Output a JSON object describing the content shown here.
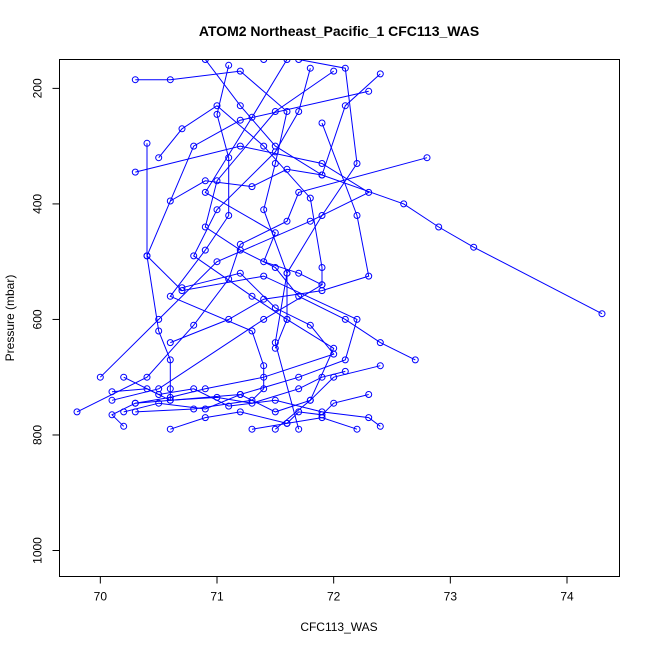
{
  "chart_data": {
    "type": "line",
    "title": "ATOM2 Northeast_Pacific_1 CFC113_WAS",
    "xlabel": "CFC113_WAS",
    "ylabel": "Pressure (mbar)",
    "xlim": [
      69.65,
      74.45
    ],
    "ylim": [
      150,
      1045
    ],
    "y_reversed": true,
    "x_ticks": [
      70,
      71,
      72,
      73,
      74
    ],
    "y_ticks": [
      200,
      400,
      600,
      800,
      1000
    ],
    "grid": false,
    "legend": "none",
    "color": "#0000ff",
    "profiles": [
      {
        "x": [
          71.1,
          71.0,
          71.1,
          71.1,
          70.9,
          70.6,
          71.3,
          71.4,
          71.4,
          71.3,
          70.8,
          70.3
        ],
        "y": [
          160,
          245,
          320,
          420,
          480,
          560,
          620,
          680,
          720,
          740,
          755,
          760
        ]
      },
      {
        "x": [
          70.3,
          70.6,
          71.2,
          71.6,
          71.5,
          71.4,
          71.6,
          71.5,
          71.7
        ],
        "y": [
          185,
          185,
          170,
          240,
          330,
          410,
          520,
          640,
          790
        ]
      },
      {
        "x": [
          71.6,
          71.3,
          70.9,
          71.5,
          71.4,
          71.7,
          71.9,
          71.4,
          70.5,
          70.1
        ],
        "y": [
          150,
          250,
          380,
          450,
          500,
          520,
          540,
          600,
          720,
          740
        ]
      },
      {
        "x": [
          71.8,
          71.7,
          71.5,
          71.0,
          70.8,
          71.3,
          71.6,
          72.0,
          71.8,
          71.5
        ],
        "y": [
          165,
          240,
          310,
          410,
          490,
          560,
          600,
          650,
          740,
          790
        ]
      },
      {
        "x": [
          72.3,
          71.2,
          70.8,
          70.4,
          70.5,
          70.6,
          70.6,
          70.6
        ],
        "y": [
          205,
          255,
          300,
          490,
          620,
          670,
          720,
          740
        ]
      },
      {
        "x": [
          70.4,
          70.4,
          70.7,
          71.4,
          72.2,
          72.1,
          71.7,
          71.2,
          70.3,
          70.1,
          70.2
        ],
        "y": [
          295,
          490,
          550,
          525,
          600,
          670,
          700,
          730,
          745,
          765,
          785
        ]
      },
      {
        "x": [
          70.3,
          71.2,
          71.9,
          72.3,
          71.8,
          71.0,
          70.5,
          70.0
        ],
        "y": [
          345,
          300,
          330,
          380,
          430,
          500,
          600,
          700
        ]
      },
      {
        "x": [
          70.6,
          70.9,
          71.3,
          71.6,
          71.9,
          72.6,
          72.9,
          73.2,
          74.3
        ],
        "y": [
          395,
          360,
          370,
          340,
          350,
          400,
          440,
          475,
          590
        ]
      },
      {
        "x": [
          72.8,
          71.7,
          71.6,
          71.2,
          71.1,
          70.8,
          70.4,
          69.8
        ],
        "y": [
          320,
          380,
          430,
          470,
          530,
          610,
          700,
          760
        ]
      },
      {
        "x": [
          71.9,
          72.2,
          72.3,
          71.9,
          71.4,
          71.1,
          70.6
        ],
        "y": [
          260,
          420,
          525,
          550,
          565,
          600,
          640
        ]
      },
      {
        "x": [
          70.5,
          70.7,
          71.0,
          71.4,
          71.8,
          71.9,
          71.9
        ],
        "y": [
          320,
          270,
          230,
          300,
          390,
          510,
          540
        ]
      },
      {
        "x": [
          72.0,
          71.5,
          71.0,
          70.9,
          71.2,
          71.5,
          71.7,
          72.1,
          72.4,
          72.7
        ],
        "y": [
          170,
          240,
          360,
          440,
          480,
          510,
          560,
          600,
          640,
          670
        ]
      },
      {
        "x": [
          70.7,
          71.2,
          71.5,
          71.8,
          72.0,
          71.4,
          70.9,
          70.6,
          70.3
        ],
        "y": [
          545,
          520,
          580,
          610,
          660,
          700,
          720,
          735,
          745
        ]
      },
      {
        "x": [
          70.2,
          70.5,
          70.8,
          71.1,
          71.5,
          71.9,
          72.3,
          72.4
        ],
        "y": [
          700,
          730,
          720,
          750,
          740,
          760,
          770,
          785
        ]
      },
      {
        "x": [
          70.6,
          70.9,
          71.2,
          71.6,
          71.9,
          72.2
        ],
        "y": [
          790,
          770,
          760,
          780,
          770,
          790
        ]
      },
      {
        "x": [
          71.3,
          71.6,
          71.7,
          71.9,
          72.0,
          72.3
        ],
        "y": [
          790,
          780,
          760,
          765,
          745,
          730
        ]
      },
      {
        "x": [
          70.1,
          70.4,
          70.6,
          71.0,
          71.3,
          71.7,
          71.9,
          72.1
        ],
        "y": [
          725,
          720,
          740,
          735,
          745,
          720,
          700,
          690
        ]
      },
      {
        "x": [
          70.2,
          70.5,
          70.9,
          71.2,
          71.5,
          71.8,
          72.0,
          72.4
        ],
        "y": [
          760,
          745,
          755,
          730,
          760,
          740,
          700,
          680
        ]
      },
      {
        "x": [
          70.9,
          71.2,
          71.5,
          71.9,
          72.1,
          72.4
        ],
        "y": [
          150,
          230,
          300,
          350,
          230,
          175
        ]
      },
      {
        "x": [
          71.4,
          71.7,
          72.1,
          72.2,
          71.9,
          71.6,
          71.6,
          71.5
        ],
        "y": [
          150,
          150,
          165,
          330,
          420,
          520,
          600,
          650
        ]
      }
    ]
  }
}
